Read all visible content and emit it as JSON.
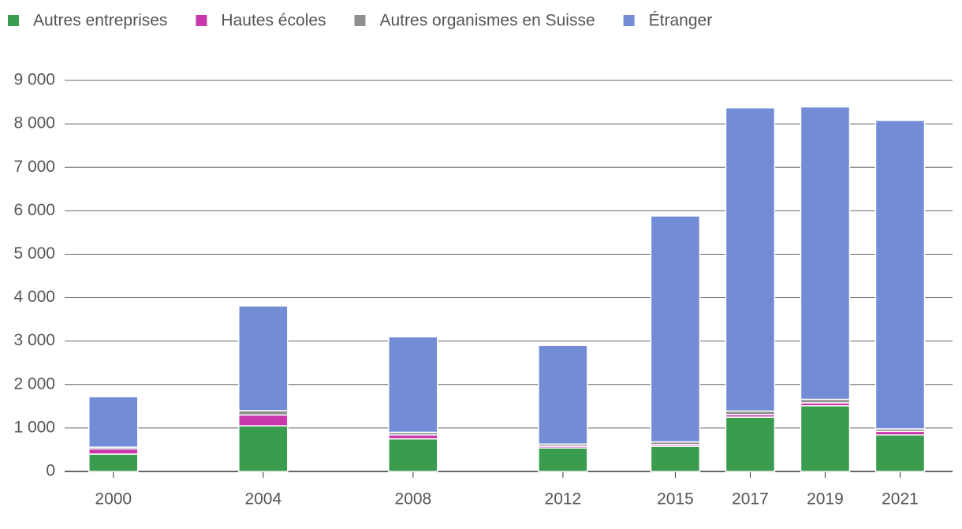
{
  "chart_data": {
    "type": "stacked-bar",
    "x": [
      2000,
      2004,
      2008,
      2012,
      2015,
      2017,
      2019,
      2021
    ],
    "series": [
      {
        "name": "Autres entreprises",
        "color": "#3a9c4e",
        "values": [
          400,
          1050,
          750,
          540,
          580,
          1250,
          1510,
          840
        ]
      },
      {
        "name": "Hautes écoles",
        "color": "#c837ab",
        "values": [
          120,
          250,
          90,
          40,
          40,
          60,
          70,
          80
        ]
      },
      {
        "name": "Autres organismes en Suisse",
        "color": "#8f8f8f",
        "values": [
          40,
          100,
          60,
          50,
          60,
          80,
          80,
          60
        ]
      },
      {
        "name": "Étranger",
        "color": "#728cd6",
        "values": [
          1160,
          2410,
          2200,
          2270,
          5200,
          6980,
          6730,
          7100
        ]
      }
    ],
    "xlim": [
      1998.7,
      2022.4
    ],
    "xticks": [
      2000,
      2004,
      2008,
      2012,
      2015,
      2017,
      2019,
      2021
    ],
    "ylim": [
      0,
      9000
    ],
    "yticks": [
      0,
      {
        "value": 1000,
        "label": "1 000"
      },
      {
        "value": 2000,
        "label": "2 000"
      },
      {
        "value": 3000,
        "label": "3 000"
      },
      {
        "value": 4000,
        "label": "4 000"
      },
      {
        "value": 5000,
        "label": "5 000"
      },
      {
        "value": 6000,
        "label": "6 000"
      },
      {
        "value": 7000,
        "label": "7 000"
      },
      {
        "value": 8000,
        "label": "8 000"
      },
      {
        "value": 9000,
        "label": "9 000"
      }
    ],
    "grid": true,
    "legend": "top"
  }
}
